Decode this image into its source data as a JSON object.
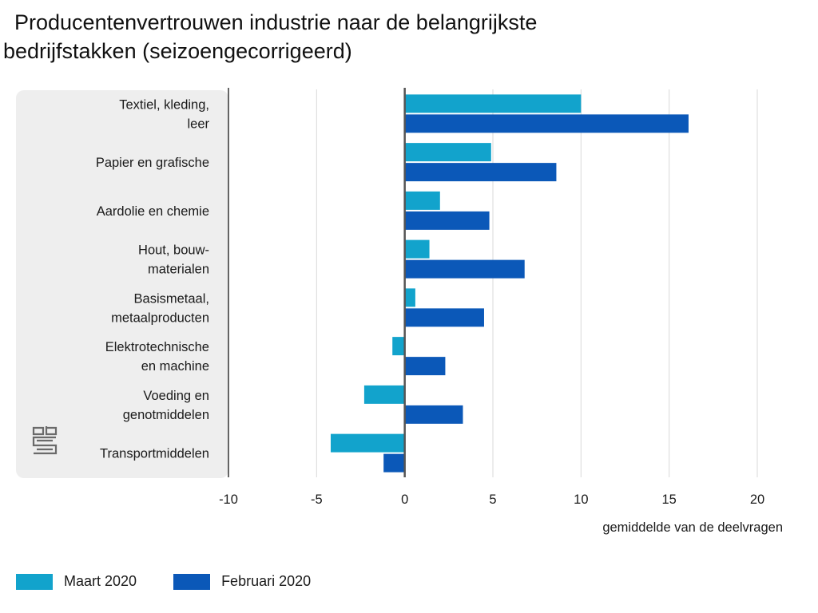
{
  "title_lines": [
    "Producentenvertrouwen industrie naar de belangrijkste",
    "bedrijfstakken (seizoengecorrigeerd)"
  ],
  "colors": {
    "series1": "#12a3cc",
    "series2": "#0b58b8",
    "label_bg": "#eeeeee",
    "grid": "#d9d9d9",
    "axis": "#555555"
  },
  "logo": {
    "icon": "cbs-logo-icon"
  },
  "chart_data": {
    "type": "bar",
    "orientation": "horizontal",
    "title": "Producentenvertrouwen industrie naar de belangrijkste bedrijfstakken (seizoengecorrigeerd)",
    "categories": [
      [
        "Textiel, kleding,",
        "leer"
      ],
      [
        "Papier en grafische"
      ],
      [
        "Aardolie en chemie"
      ],
      [
        "Hout, bouw-",
        "materialen"
      ],
      [
        "Basismetaal,",
        "metaalproducten"
      ],
      [
        "Elektrotechnische",
        "en machine"
      ],
      [
        "Voeding en",
        "genotmiddelen"
      ],
      [
        "Transportmiddelen"
      ]
    ],
    "series": [
      {
        "name": "Maart 2020",
        "values": [
          10.0,
          4.9,
          2.0,
          1.4,
          0.6,
          -0.7,
          -2.3,
          -4.2
        ]
      },
      {
        "name": "Februari 2020",
        "values": [
          16.1,
          8.6,
          4.8,
          6.8,
          4.5,
          2.3,
          3.3,
          -1.2
        ]
      }
    ],
    "xlim": [
      -10,
      20
    ],
    "xticks": [
      "-10",
      "-5",
      "0",
      "5",
      "10",
      "15",
      "20"
    ],
    "xlabel": "gemiddelde van de deelvragen",
    "grid": true,
    "legend_position": "bottom-left"
  }
}
